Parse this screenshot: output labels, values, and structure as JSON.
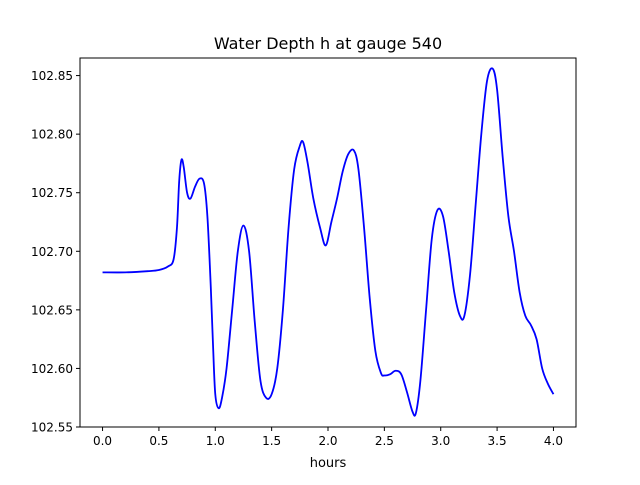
{
  "chart_data": {
    "type": "line",
    "title": "Water Depth h at gauge 540",
    "xlabel": "hours",
    "ylabel": "",
    "xlim": [
      -0.2,
      4.2
    ],
    "ylim": [
      102.55,
      102.865
    ],
    "grid": false,
    "legend": "none",
    "xticks": [
      0.0,
      0.5,
      1.0,
      1.5,
      2.0,
      2.5,
      3.0,
      3.5,
      4.0
    ],
    "xtick_labels": [
      "0.0",
      "0.5",
      "1.0",
      "1.5",
      "2.0",
      "2.5",
      "3.0",
      "3.5",
      "4.0"
    ],
    "yticks": [
      102.55,
      102.6,
      102.65,
      102.7,
      102.75,
      102.8,
      102.85
    ],
    "ytick_labels": [
      "102.55",
      "102.60",
      "102.65",
      "102.70",
      "102.75",
      "102.80",
      "102.85"
    ],
    "series": [
      {
        "color": "#0000ff",
        "x": [
          0.0,
          0.2,
          0.4,
          0.5,
          0.58,
          0.63,
          0.66,
          0.68,
          0.7,
          0.72,
          0.75,
          0.78,
          0.82,
          0.86,
          0.9,
          0.93,
          0.96,
          0.98,
          1.0,
          1.03,
          1.06,
          1.1,
          1.15,
          1.2,
          1.25,
          1.3,
          1.35,
          1.4,
          1.45,
          1.5,
          1.55,
          1.6,
          1.65,
          1.7,
          1.75,
          1.78,
          1.82,
          1.87,
          1.93,
          1.98,
          2.03,
          2.08,
          2.13,
          2.18,
          2.23,
          2.27,
          2.32,
          2.37,
          2.42,
          2.47,
          2.5,
          2.55,
          2.6,
          2.65,
          2.7,
          2.75,
          2.78,
          2.82,
          2.87,
          2.92,
          2.97,
          3.02,
          3.07,
          3.12,
          3.17,
          3.21,
          3.26,
          3.31,
          3.36,
          3.41,
          3.46,
          3.5,
          3.55,
          3.6,
          3.65,
          3.7,
          3.75,
          3.8,
          3.85,
          3.9,
          3.95,
          4.0
        ],
        "y": [
          102.682,
          102.682,
          102.683,
          102.684,
          102.687,
          102.693,
          102.72,
          102.76,
          102.778,
          102.772,
          102.75,
          102.745,
          102.755,
          102.762,
          102.758,
          102.73,
          102.67,
          102.62,
          102.578,
          102.566,
          102.575,
          102.6,
          102.65,
          102.7,
          102.722,
          102.7,
          102.64,
          102.59,
          102.575,
          102.578,
          102.6,
          102.65,
          102.72,
          102.77,
          102.79,
          102.793,
          102.775,
          102.745,
          102.72,
          102.705,
          102.725,
          102.745,
          102.768,
          102.783,
          102.786,
          102.77,
          102.72,
          102.66,
          102.615,
          102.596,
          102.594,
          102.595,
          102.598,
          102.595,
          102.58,
          102.563,
          102.562,
          102.59,
          102.65,
          102.71,
          102.735,
          102.73,
          102.7,
          102.665,
          102.645,
          102.645,
          102.68,
          102.74,
          102.8,
          102.845,
          102.856,
          102.838,
          102.78,
          102.73,
          102.7,
          102.665,
          102.645,
          102.637,
          102.625,
          102.6,
          102.587,
          102.578
        ]
      }
    ]
  }
}
